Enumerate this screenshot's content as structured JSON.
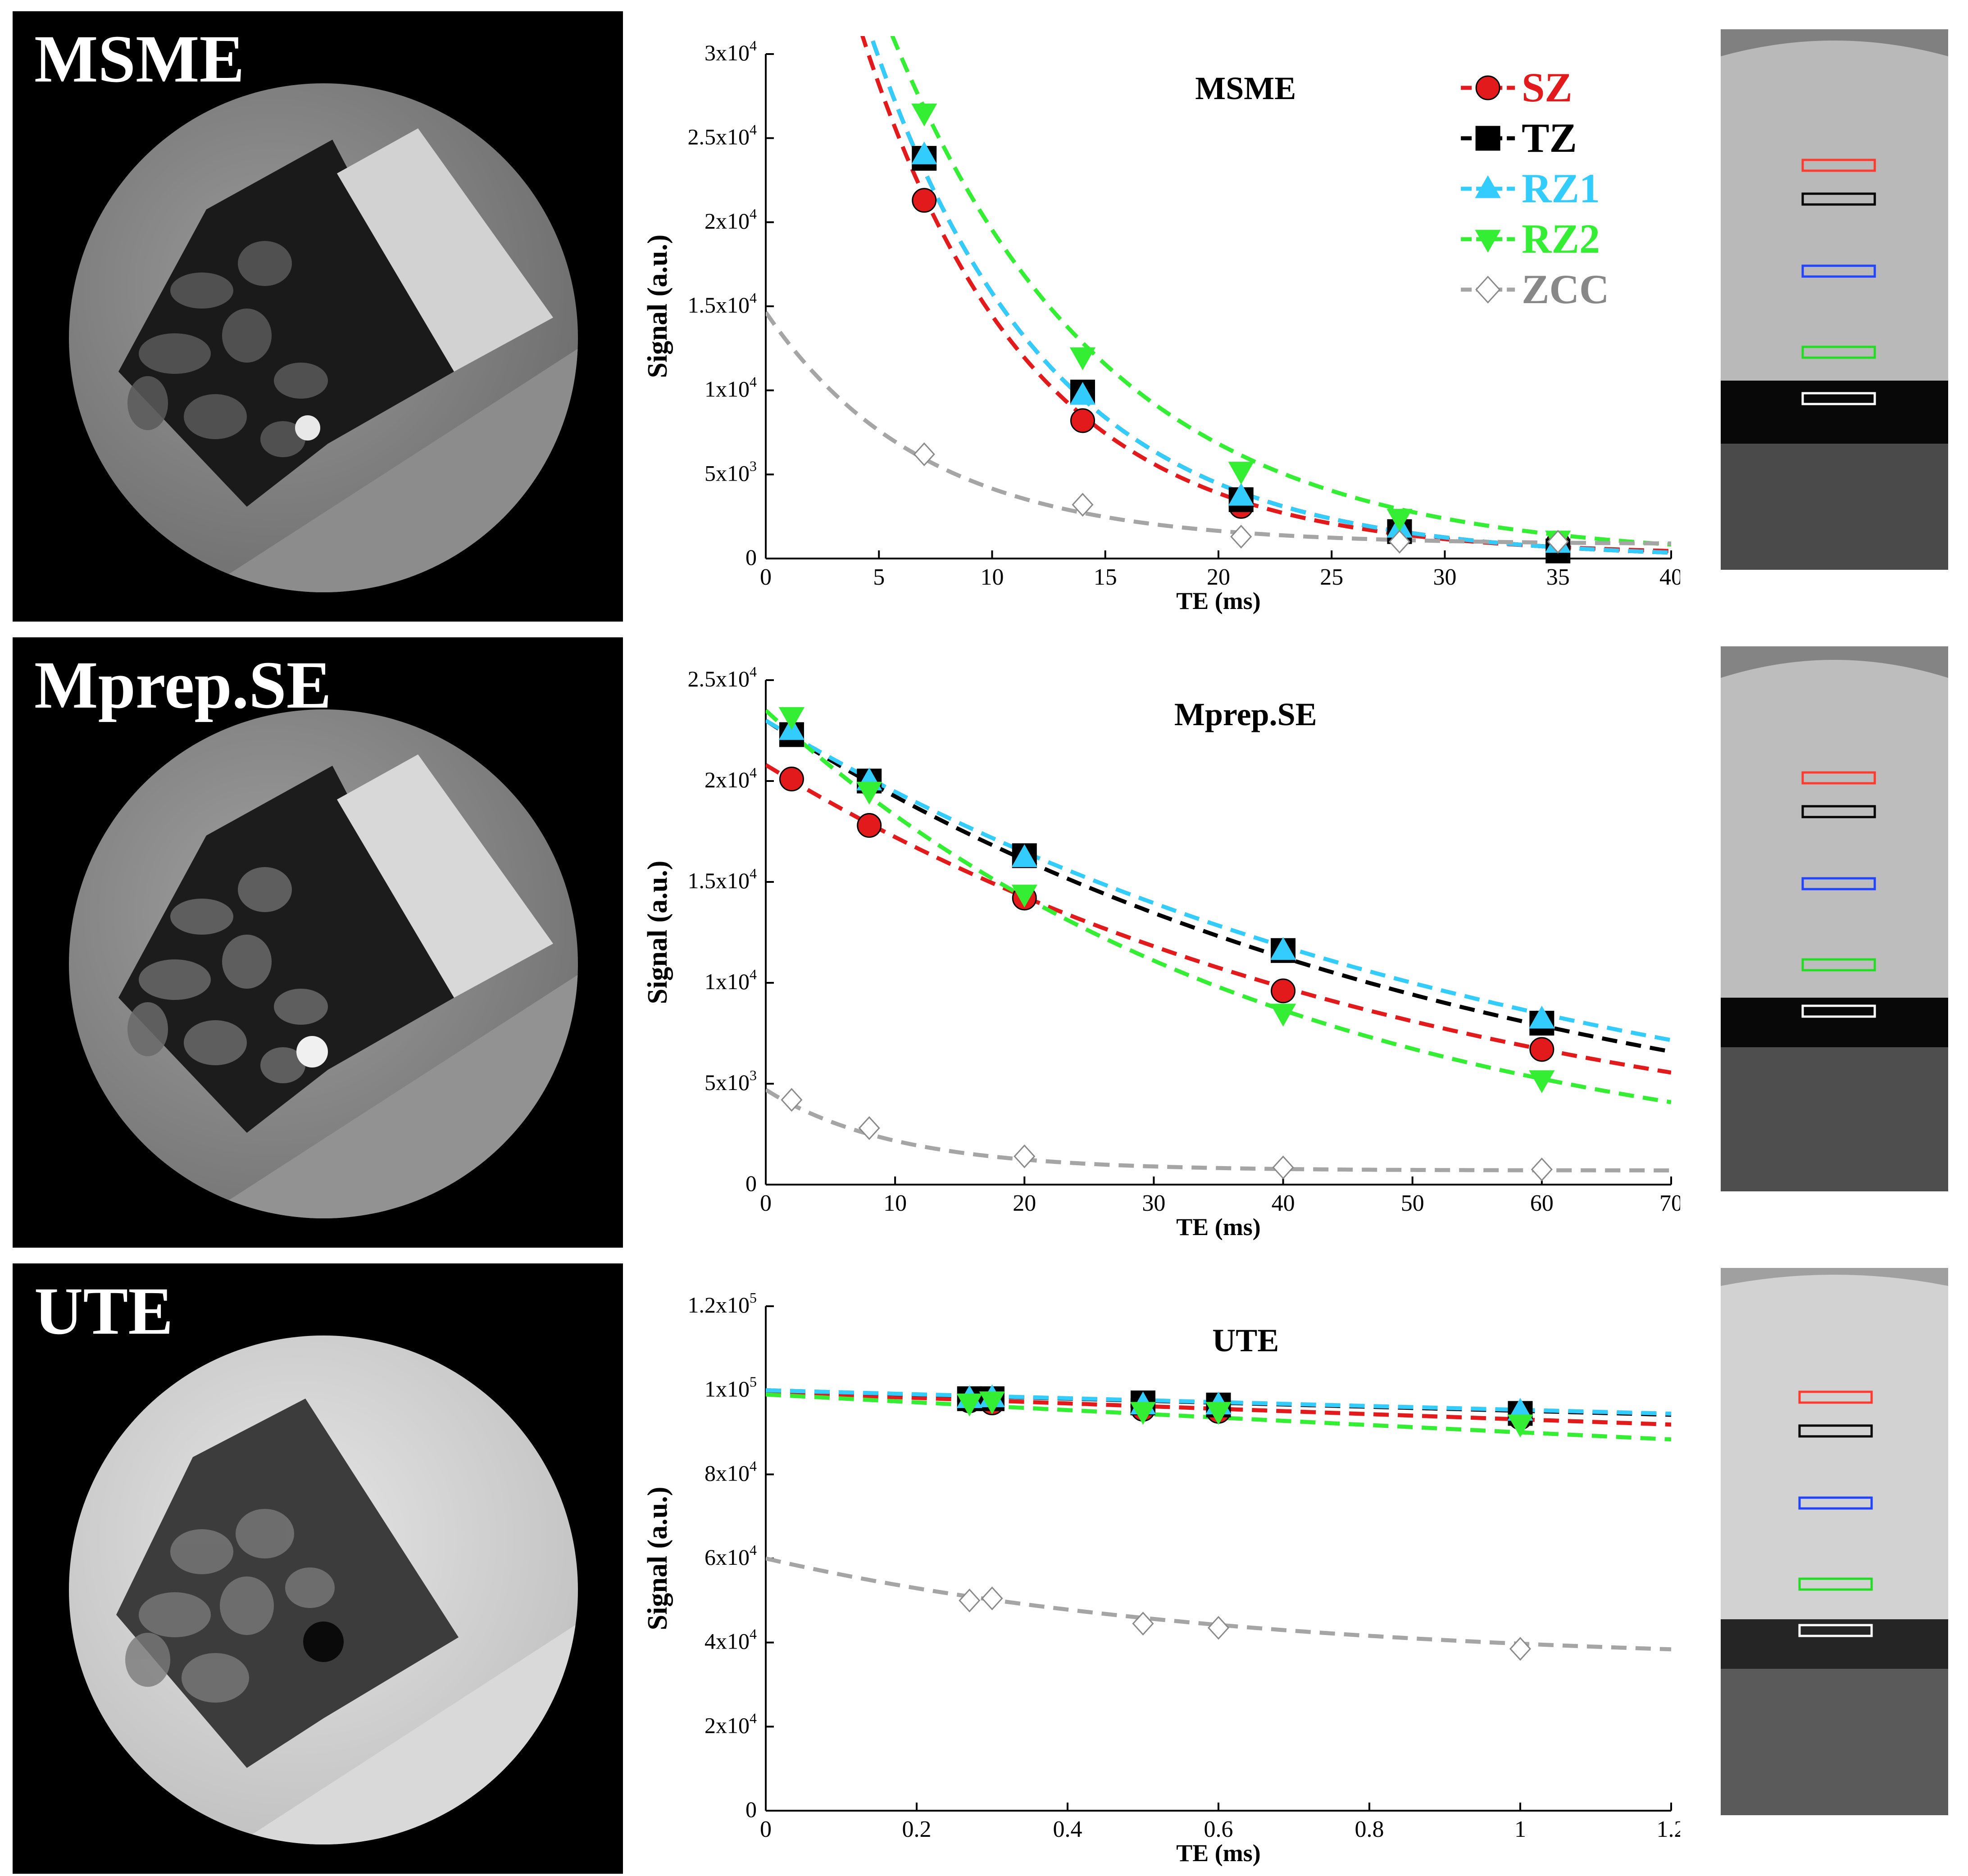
{
  "labels": [
    "MSME",
    "Mprep.SE",
    "UTE"
  ],
  "colors": {
    "SZ": "#e31a1c",
    "TZ": "#000000",
    "RZ1": "#33ccff",
    "RZ2": "#33ee33",
    "ZCC": "#9a9a9a",
    "roi_red": "#ff3b30",
    "roi_black": "#000000",
    "roi_blue": "#2244ff",
    "roi_green": "#22dd22",
    "roi_white": "#ffffff"
  },
  "chart_data": [
    {
      "type": "line",
      "title": "MSME",
      "xlabel": "TE (ms)",
      "ylabel": "Signal (a.u.)",
      "xlim": [
        0,
        40
      ],
      "ylim": [
        0,
        30000
      ],
      "xticks": [
        "0",
        "5",
        "10",
        "15",
        "20",
        "25",
        "30",
        "35",
        "40"
      ],
      "yticks": [
        {
          "m": "0",
          "e": ""
        },
        {
          "m": "5x10",
          "e": "3"
        },
        {
          "m": "1x10",
          "e": "4"
        },
        {
          "m": "1.5x10",
          "e": "4"
        },
        {
          "m": "2x10",
          "e": "4"
        },
        {
          "m": "2.5x10",
          "e": "4"
        },
        {
          "m": "3x10",
          "e": "4"
        }
      ],
      "legend": [
        "SZ",
        "TZ",
        "RZ1",
        "RZ2",
        "ZCC"
      ],
      "series": [
        {
          "name": "SZ",
          "marker": "circle",
          "x": [
            7,
            14,
            21,
            28,
            35
          ],
          "values": [
            21300,
            8200,
            3100,
            1500,
            900
          ],
          "fit": {
            "A": 55000,
            "T2": 7.4,
            "C": 200
          }
        },
        {
          "name": "TZ",
          "marker": "square",
          "x": [
            7,
            14,
            21,
            28,
            35
          ],
          "values": [
            23800,
            9900,
            3500,
            1600,
            450
          ],
          "fit": {
            "A": 56000,
            "T2": 7.9,
            "C": 0
          }
        },
        {
          "name": "RZ1",
          "marker": "triangle",
          "x": [
            7,
            14,
            21,
            28,
            35
          ],
          "values": [
            24000,
            9700,
            3700,
            1800,
            900
          ],
          "fit": {
            "A": 56000,
            "T2": 7.9,
            "C": 0
          }
        },
        {
          "name": "RZ2",
          "marker": "triangle-down",
          "x": [
            7,
            14,
            21,
            28,
            35
          ],
          "values": [
            26500,
            12000,
            5200,
            2400,
            1100
          ],
          "fit": {
            "A": 56000,
            "T2": 9.5,
            "C": 0
          }
        },
        {
          "name": "ZCC",
          "marker": "diamond",
          "x": [
            7,
            14,
            21,
            28,
            35
          ],
          "values": [
            6200,
            3200,
            1300,
            1000,
            1000
          ],
          "fit": {
            "A": 13800,
            "T2": 7.0,
            "C": 850
          }
        }
      ]
    },
    {
      "type": "line",
      "title": "Mprep.SE",
      "xlabel": "TE (ms)",
      "ylabel": "Signal (a.u.)",
      "xlim": [
        0,
        70
      ],
      "ylim": [
        0,
        25000
      ],
      "xticks": [
        "0",
        "10",
        "20",
        "30",
        "40",
        "50",
        "60",
        "70"
      ],
      "yticks": [
        {
          "m": "0",
          "e": ""
        },
        {
          "m": "5x10",
          "e": "3"
        },
        {
          "m": "1x10",
          "e": "4"
        },
        {
          "m": "1.5x10",
          "e": "4"
        },
        {
          "m": "2x10",
          "e": "4"
        },
        {
          "m": "2.5x10",
          "e": "4"
        }
      ],
      "series": [
        {
          "name": "SZ",
          "marker": "circle",
          "x": [
            2,
            8,
            20,
            40,
            60
          ],
          "values": [
            20100,
            17800,
            14200,
            9600,
            6700
          ],
          "fit": {
            "A": 20800,
            "T2": 53,
            "C": 0
          }
        },
        {
          "name": "TZ",
          "marker": "square",
          "x": [
            2,
            8,
            20,
            40,
            60
          ],
          "values": [
            22300,
            20000,
            16300,
            11600,
            8000
          ],
          "fit": {
            "A": 23000,
            "T2": 56,
            "C": 0
          }
        },
        {
          "name": "RZ1",
          "marker": "triangle",
          "x": [
            2,
            8,
            20,
            40,
            60
          ],
          "values": [
            22500,
            20000,
            16200,
            11600,
            8200
          ],
          "fit": {
            "A": 23000,
            "T2": 60,
            "C": 0
          }
        },
        {
          "name": "RZ2",
          "marker": "triangle-down",
          "x": [
            2,
            8,
            20,
            40,
            60
          ],
          "values": [
            23200,
            19500,
            14400,
            8500,
            5200
          ],
          "fit": {
            "A": 23500,
            "T2": 40,
            "C": 0
          }
        },
        {
          "name": "ZCC",
          "marker": "diamond",
          "x": [
            2,
            8,
            20,
            40,
            60
          ],
          "values": [
            4200,
            2800,
            1400,
            850,
            750
          ],
          "fit": {
            "A": 4000,
            "T2": 10,
            "C": 700
          }
        }
      ]
    },
    {
      "type": "line",
      "title": "UTE",
      "xlabel": "TE (ms)",
      "ylabel": "Signal (a.u.)",
      "xlim": [
        0,
        1.2
      ],
      "ylim": [
        0,
        120000
      ],
      "xticks": [
        "0",
        "0.2",
        "0.4",
        "0.6",
        "0.8",
        "1",
        "1.2"
      ],
      "yticks": [
        {
          "m": "0",
          "e": ""
        },
        {
          "m": "2x10",
          "e": "4"
        },
        {
          "m": "4x10",
          "e": "4"
        },
        {
          "m": "6x10",
          "e": "4"
        },
        {
          "m": "8x10",
          "e": "4"
        },
        {
          "m": "1x10",
          "e": "5"
        },
        {
          "m": "1.2x10",
          "e": "5"
        }
      ],
      "series": [
        {
          "name": "SZ",
          "marker": "circle",
          "x": [
            0.27,
            0.3,
            0.5,
            0.6,
            1.0
          ],
          "values": [
            97500,
            97000,
            95500,
            95000,
            93500
          ],
          "fit": {
            "A": 99500,
            "T2": 15,
            "C": 0
          }
        },
        {
          "name": "TZ",
          "marker": "square",
          "x": [
            0.27,
            0.3,
            0.5,
            0.6,
            1.0
          ],
          "values": [
            98000,
            98000,
            97000,
            96500,
            94500
          ],
          "fit": {
            "A": 100000,
            "T2": 20,
            "C": 0
          }
        },
        {
          "name": "RZ1",
          "marker": "triangle",
          "x": [
            0.27,
            0.3,
            0.5,
            0.6,
            1.0
          ],
          "values": [
            98000,
            98200,
            96500,
            96500,
            95000
          ],
          "fit": {
            "A": 100000,
            "T2": 21,
            "C": 0
          }
        },
        {
          "name": "RZ2",
          "marker": "triangle-down",
          "x": [
            0.27,
            0.3,
            0.5,
            0.6,
            1.0
          ],
          "values": [
            97000,
            97500,
            95000,
            95000,
            92000
          ],
          "fit": {
            "A": 99000,
            "T2": 10.5,
            "C": 0
          }
        },
        {
          "name": "ZCC",
          "marker": "diamond",
          "x": [
            0.27,
            0.3,
            0.5,
            0.6,
            1.0
          ],
          "values": [
            50000,
            50500,
            44500,
            43500,
            38500
          ],
          "fit": {
            "A": 25000,
            "T2": 0.6,
            "C": 35000
          }
        }
      ]
    }
  ]
}
